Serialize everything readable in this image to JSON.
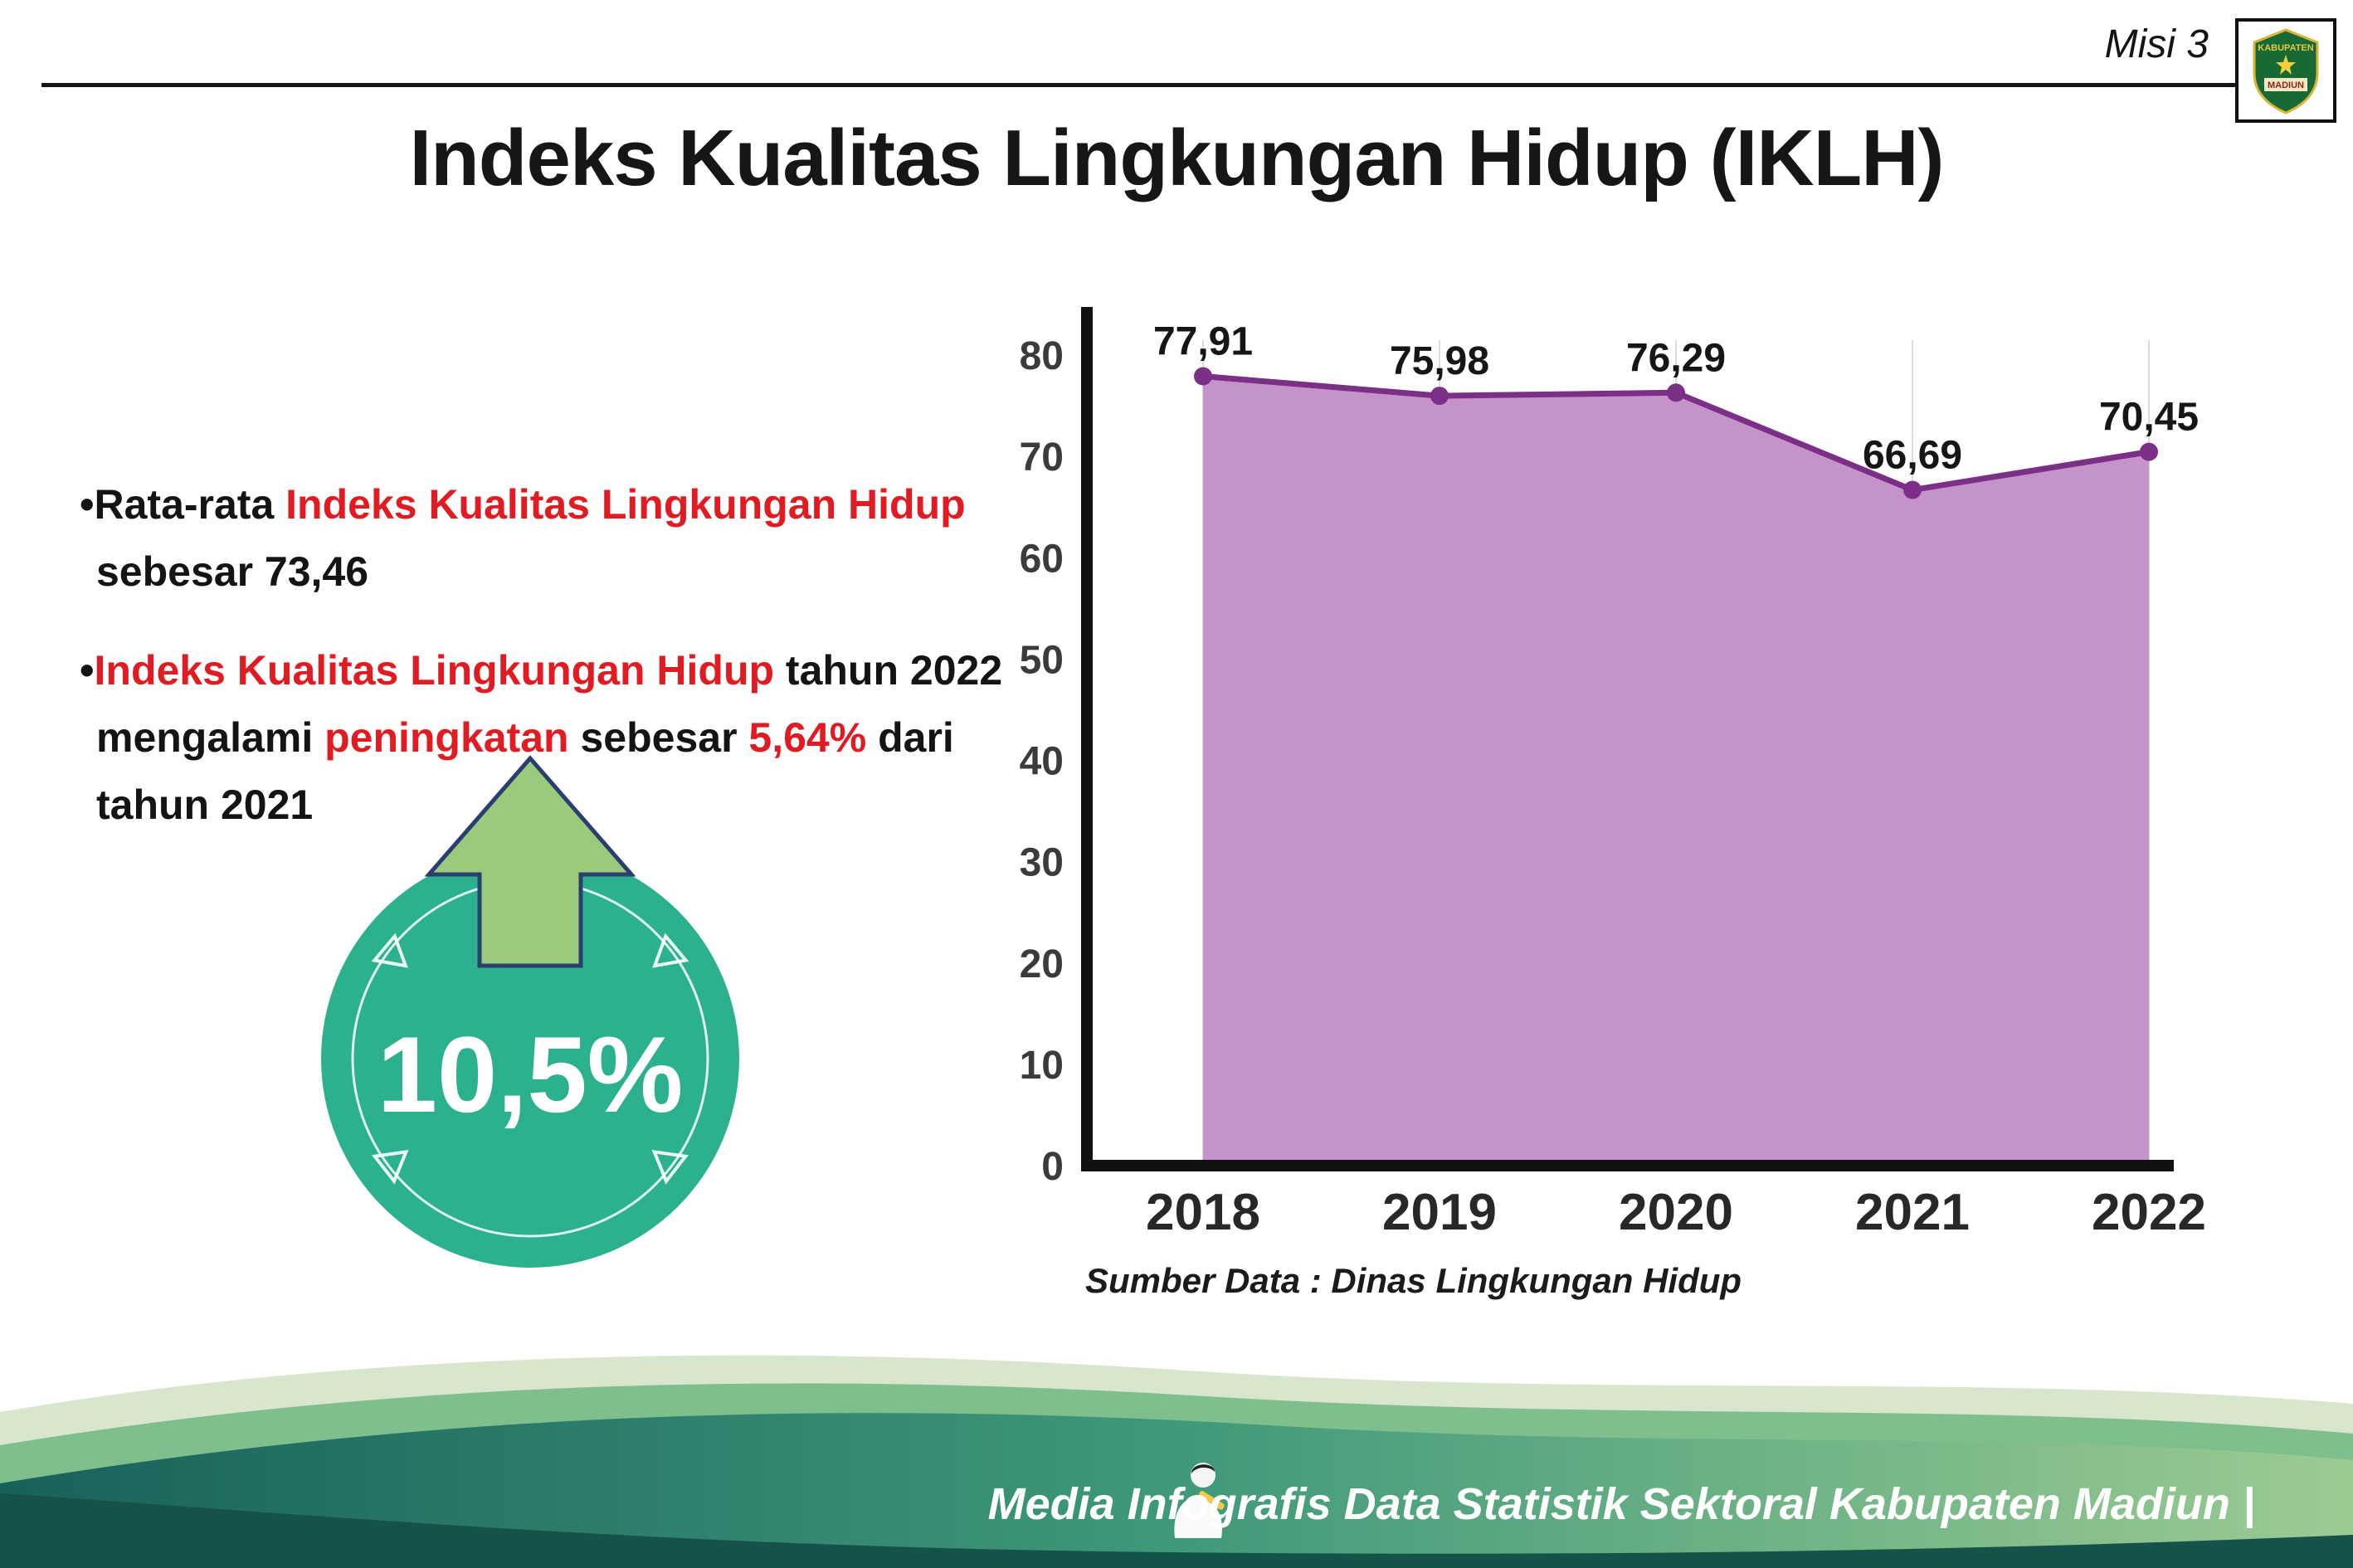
{
  "palette": {
    "red": "#e11b22",
    "black": "#161616",
    "badge_teal": "#2cb18f",
    "arrow_green": "#9cca7c",
    "line_purple": "#7c2f86",
    "fill_purple": "#c493c9",
    "footer_dark": "#17524a"
  },
  "header": {
    "misi_label": "Misi 3",
    "title": "Indeks Kualitas Lingkungan Hidup (IKLH)",
    "logo": {
      "line1": "KABUPATEN",
      "line2": "MADIUN"
    }
  },
  "bullets": {
    "b1": [
      [
        {
          "t": "•Rata-rata ",
          "c": "k"
        },
        {
          "t": "Indeks Kualitas Lingkungan Hidup",
          "c": "r"
        }
      ],
      [
        {
          "t": "sebesar 73,46",
          "c": "k"
        }
      ]
    ],
    "b2": [
      [
        {
          "t": "•",
          "c": "k"
        },
        {
          "t": "Indeks Kualitas Lingkungan Hidup",
          "c": "r"
        },
        {
          "t": " tahun 2022",
          "c": "k"
        }
      ],
      [
        {
          "t": "mengalami ",
          "c": "k"
        },
        {
          "t": "peningkatan",
          "c": "r"
        },
        {
          "t": " sebesar ",
          "c": "k"
        },
        {
          "t": "5,64%",
          "c": "r"
        },
        {
          "t": " dari",
          "c": "k"
        }
      ],
      [
        {
          "t": "tahun 2021",
          "c": "k"
        }
      ]
    ]
  },
  "badge": {
    "value": "10,5%",
    "circle_color": "#2cb18f",
    "arrow_color": "#9cca7c"
  },
  "chart_data": {
    "type": "area",
    "title": "Indeks Kualitas Lingkungan Hidup (IKLH)",
    "categories": [
      "2018",
      "2019",
      "2020",
      "2021",
      "2022"
    ],
    "values": [
      77.91,
      75.98,
      76.29,
      66.69,
      70.45
    ],
    "value_labels": [
      "77,91",
      "75,98",
      "76,29",
      "66,69",
      "70,45"
    ],
    "yticks": [
      0,
      10,
      20,
      30,
      40,
      50,
      60,
      70,
      80
    ],
    "ylim": [
      0,
      80
    ],
    "xlabel": "",
    "ylabel": "",
    "grid": "vertical",
    "legend": "none",
    "line_color": "#7c2f86",
    "fill_color": "#c493c9",
    "source": "Sumber Data : Dinas Lingkungan Hidup"
  },
  "footer": {
    "text": "Media Infografis Data Statistik Sektoral Kabupaten Madiun |"
  }
}
